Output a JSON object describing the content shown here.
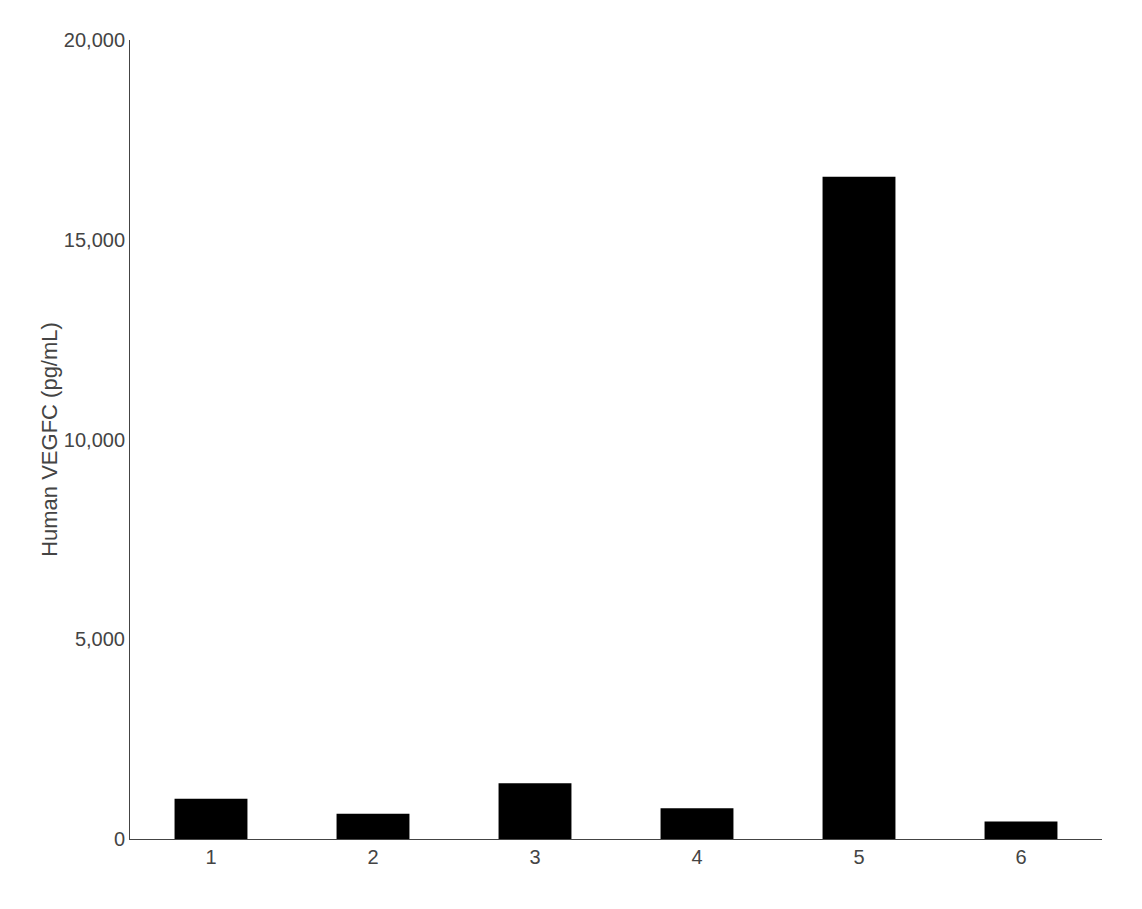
{
  "chart_data": {
    "type": "bar",
    "categories": [
      "1",
      "2",
      "3",
      "4",
      "5",
      "6"
    ],
    "values": [
      1006.5,
      632.0,
      1393.8,
      769.4,
      16575.6,
      440.5
    ],
    "color": "#000000",
    "ylabel": "Human VEGFC (pg/mL)",
    "ylim": [
      0,
      20000
    ],
    "yticks": [
      0,
      {
        "value": 5000,
        "label": "5,000"
      },
      {
        "value": 10000,
        "label": "10,000"
      },
      {
        "value": 15000,
        "label": "15,000"
      },
      {
        "value": 20000,
        "label": "20,000"
      }
    ],
    "grid": false
  }
}
